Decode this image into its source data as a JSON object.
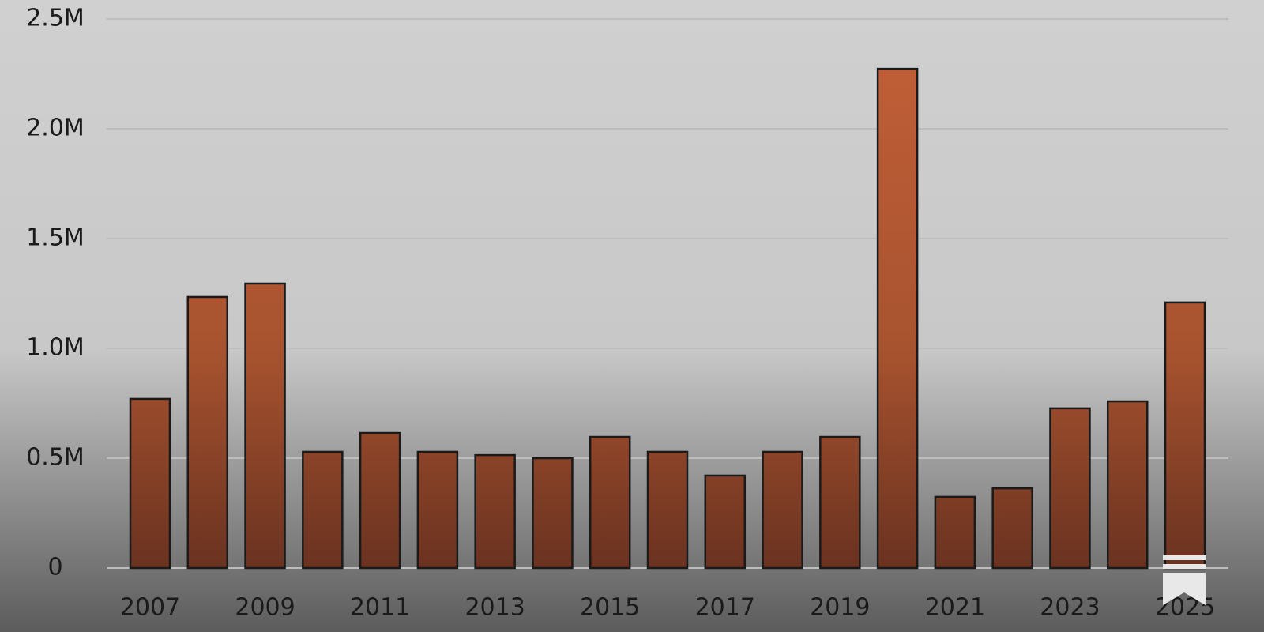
{
  "chart_data": {
    "type": "bar",
    "categories": [
      "2007",
      null,
      "2009",
      null,
      "2011",
      null,
      "2013",
      null,
      "2015",
      null,
      "2017",
      null,
      "2019",
      null,
      "2021",
      null,
      "2023",
      null,
      "2025"
    ],
    "values": [
      770000,
      1234000,
      1295000,
      529000,
      615000,
      529000,
      514000,
      500000,
      597000,
      529000,
      421000,
      529000,
      597000,
      2273000,
      324000,
      363000,
      727000,
      759000,
      1209000
    ],
    "color": "#b85c35",
    "ylim": [
      0,
      2500000
    ],
    "yticks": [
      0,
      {
        "value": 500000,
        "label": "0.5M"
      },
      {
        "value": 1000000,
        "label": "1.0M"
      },
      {
        "value": 1500000,
        "label": "1.5M"
      },
      {
        "value": 2000000,
        "label": "2.0M"
      },
      {
        "value": 2500000,
        "label": "2.5M"
      }
    ],
    "grid": true
  }
}
